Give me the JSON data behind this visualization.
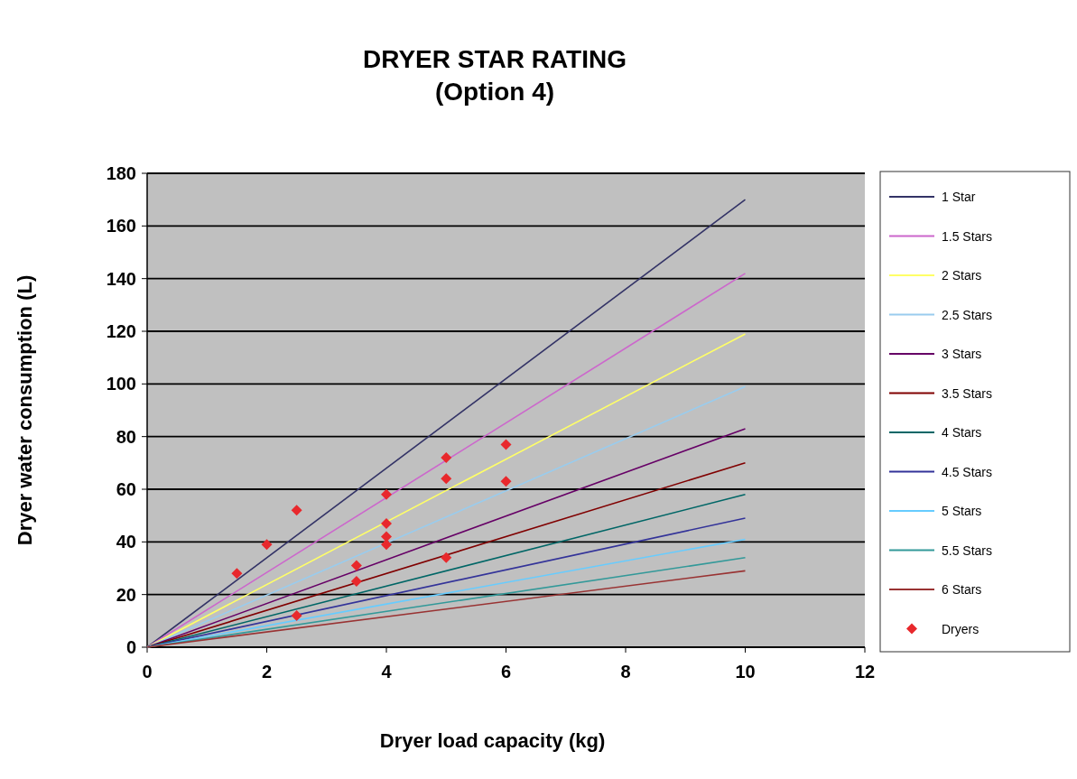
{
  "chart_data": {
    "type": "line",
    "title": "DRYER STAR RATING",
    "subtitle": "(Option 4)",
    "xlabel": "Dryer load capacity   (kg)",
    "ylabel": "Dryer water consumption (L)",
    "xlim": [
      0,
      12
    ],
    "xticks": [
      0,
      2,
      4,
      6,
      8,
      10,
      12
    ],
    "ylim": [
      0,
      180
    ],
    "yticks": [
      0,
      20,
      40,
      60,
      80,
      100,
      120,
      140,
      160,
      180
    ],
    "grid": "y",
    "legend": "right",
    "line_style": "solid",
    "series": [
      {
        "name": "1 Star",
        "color": "#333366",
        "x": [
          0,
          10
        ],
        "values": [
          0,
          170
        ]
      },
      {
        "name": "1.5 Stars",
        "color": "#cc66cc",
        "x": [
          0,
          10
        ],
        "values": [
          0,
          142
        ]
      },
      {
        "name": "2 Stars",
        "color": "#ffff66",
        "x": [
          0,
          10
        ],
        "values": [
          0,
          119
        ]
      },
      {
        "name": "2.5 Stars",
        "color": "#99ccee",
        "x": [
          0,
          10
        ],
        "values": [
          0,
          99
        ]
      },
      {
        "name": "3 Stars",
        "color": "#660066",
        "x": [
          0,
          10
        ],
        "values": [
          0,
          83
        ]
      },
      {
        "name": "3.5 Stars",
        "color": "#800000",
        "x": [
          0,
          10
        ],
        "values": [
          0,
          70
        ]
      },
      {
        "name": "4 Stars",
        "color": "#006666",
        "x": [
          0,
          10
        ],
        "values": [
          0,
          58
        ]
      },
      {
        "name": "4.5 Stars",
        "color": "#333399",
        "x": [
          0,
          10
        ],
        "values": [
          0,
          49
        ]
      },
      {
        "name": "5 Stars",
        "color": "#66ccff",
        "x": [
          0,
          10
        ],
        "values": [
          0,
          41
        ]
      },
      {
        "name": "5.5 Stars",
        "color": "#339999",
        "x": [
          0,
          10
        ],
        "values": [
          0,
          34
        ]
      },
      {
        "name": "6 Stars",
        "color": "#993333",
        "x": [
          0,
          10
        ],
        "values": [
          0,
          29
        ]
      },
      {
        "name": "Dryers",
        "type": "scatter",
        "marker": "diamond",
        "color": "#e8282c",
        "x": [
          1.5,
          2,
          2.5,
          2.5,
          3.5,
          3.5,
          4,
          4,
          4,
          4,
          5,
          5,
          5,
          6,
          6
        ],
        "values": [
          28,
          39,
          52,
          12,
          31,
          25,
          58,
          47,
          42,
          39,
          72,
          64,
          34,
          77,
          63
        ]
      }
    ]
  }
}
